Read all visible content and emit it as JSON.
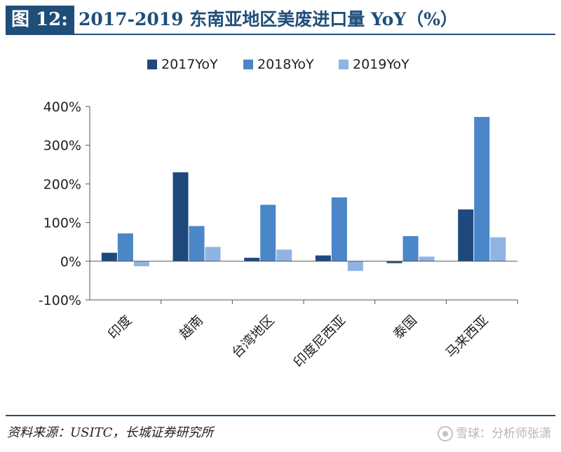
{
  "header": {
    "figure_label": "图 12:",
    "title": "2017-2019 东南亚地区美废进口量 YoY（%）"
  },
  "chart_data": {
    "type": "bar",
    "title": "2017-2019 东南亚地区美废进口量 YoY（%）",
    "xlabel": "",
    "ylabel": "",
    "categories": [
      "印度",
      "越南",
      "台湾地区",
      "印度尼西亚",
      "泰国",
      "马来西亚"
    ],
    "series": [
      {
        "name": "2017YoY",
        "color": "#1f497d",
        "values": [
          22,
          230,
          9,
          15,
          -5,
          134
        ]
      },
      {
        "name": "2018YoY",
        "color": "#4a86c8",
        "values": [
          72,
          91,
          146,
          165,
          65,
          373
        ]
      },
      {
        "name": "2019YoY",
        "color": "#8fb4e3",
        "values": [
          -13,
          37,
          30,
          -25,
          12,
          62
        ]
      }
    ],
    "ylim": [
      -100,
      400
    ],
    "yticks": [
      -100,
      0,
      100,
      200,
      300,
      400
    ],
    "ytick_labels": [
      "-100%",
      "0%",
      "100%",
      "200%",
      "300%",
      "400%"
    ],
    "legend_position": "top-center",
    "grid": false
  },
  "footer": {
    "source": "资料来源：USITC，长城证券研究所",
    "watermark": "雪球：分析师张潇"
  }
}
